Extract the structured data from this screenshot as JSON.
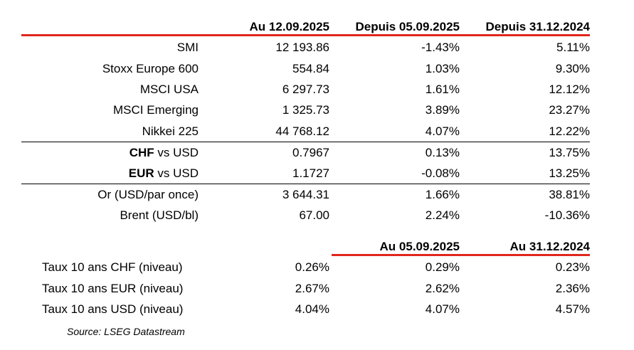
{
  "header": {
    "col1": "Au 12.09.2025",
    "col2": "Depuis 05.09.2025",
    "col3": "Depuis 31.12.2024"
  },
  "indices": [
    {
      "label": "SMI",
      "v1": "12 193.86",
      "v2": "-1.43%",
      "v3": "5.11%"
    },
    {
      "label": "Stoxx Europe 600",
      "v1": "554.84",
      "v2": "1.03%",
      "v3": "9.30%"
    },
    {
      "label": "MSCI USA",
      "v1": "6 297.73",
      "v2": "1.61%",
      "v3": "12.12%"
    },
    {
      "label": "MSCI Emerging",
      "v1": "1 325.73",
      "v2": "3.89%",
      "v3": "23.27%"
    },
    {
      "label": "Nikkei 225",
      "v1": "44 768.12",
      "v2": "4.07%",
      "v3": "12.22%"
    }
  ],
  "fx": [
    {
      "label_bold": "CHF",
      "label_rest": " vs USD",
      "v1": "0.7967",
      "v2": "0.13%",
      "v3": "13.75%"
    },
    {
      "label_bold": "EUR",
      "label_rest": " vs USD",
      "v1": "1.1727",
      "v2": "-0.08%",
      "v3": "13.25%"
    }
  ],
  "commodities": [
    {
      "label": "Or (USD/par once)",
      "v1": "3 644.31",
      "v2": "1.66%",
      "v3": "38.81%"
    },
    {
      "label": "Brent (USD/bl)",
      "v1": "67.00",
      "v2": "2.24%",
      "v3": "-10.36%"
    }
  ],
  "rates_header": {
    "col2": "Au 05.09.2025",
    "col3": "Au 31.12.2024"
  },
  "rates": [
    {
      "label": "Taux 10 ans CHF (niveau)",
      "v1": "0.26%",
      "v2": "0.29%",
      "v3": "0.23%"
    },
    {
      "label": "Taux 10 ans EUR (niveau)",
      "v1": "2.67%",
      "v2": "2.62%",
      "v3": "2.36%"
    },
    {
      "label": "Taux 10 ans USD (niveau)",
      "v1": "4.04%",
      "v2": "4.07%",
      "v3": "4.57%"
    }
  ],
  "source": "Source: LSEG Datastream",
  "colors": {
    "accent_red": "#e0261d"
  }
}
